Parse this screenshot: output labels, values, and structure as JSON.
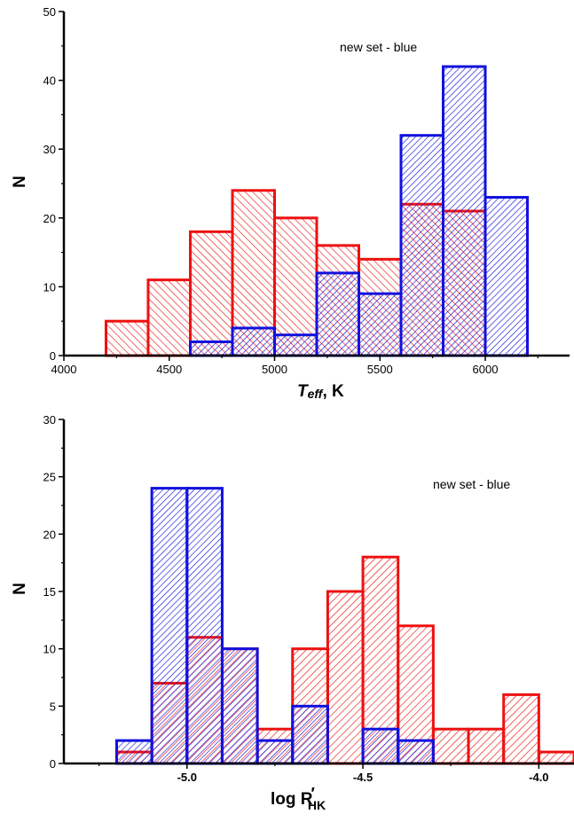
{
  "colors": {
    "red": "#ee1111",
    "blue": "#1111dd",
    "axis": "#000000"
  },
  "chart_data": [
    {
      "type": "bar",
      "subtype": "overlaid-histogram",
      "annotation": "new set - blue",
      "xlabel_main": "T",
      "xlabel_sub": "eff",
      "xlabel_suffix": ", K",
      "ylabel": "N",
      "xlim": [
        4000,
        6400
      ],
      "ylim": [
        0,
        50
      ],
      "x_ticks": [
        4000,
        4500,
        5000,
        5500,
        6000
      ],
      "x_tick_labels": [
        "4000",
        "4500",
        "5000",
        "5500",
        "6000"
      ],
      "y_ticks": [
        0,
        10,
        20,
        30,
        40,
        50
      ],
      "y_tick_labels": [
        "0",
        "10",
        "20",
        "30",
        "40",
        "50"
      ],
      "series": [
        {
          "color": "red",
          "bins": [
            {
              "x0": 4200,
              "x1": 4400,
              "value": 5
            },
            {
              "x0": 4400,
              "x1": 4600,
              "value": 11
            },
            {
              "x0": 4600,
              "x1": 4800,
              "value": 18
            },
            {
              "x0": 4800,
              "x1": 5000,
              "value": 24
            },
            {
              "x0": 5000,
              "x1": 5200,
              "value": 20
            },
            {
              "x0": 5200,
              "x1": 5400,
              "value": 16
            },
            {
              "x0": 5400,
              "x1": 5600,
              "value": 14
            },
            {
              "x0": 5600,
              "x1": 5800,
              "value": 22
            },
            {
              "x0": 5800,
              "x1": 6000,
              "value": 21
            }
          ]
        },
        {
          "color": "blue",
          "bins": [
            {
              "x0": 4600,
              "x1": 4800,
              "value": 2
            },
            {
              "x0": 4800,
              "x1": 5000,
              "value": 4
            },
            {
              "x0": 5000,
              "x1": 5200,
              "value": 3
            },
            {
              "x0": 5200,
              "x1": 5400,
              "value": 12
            },
            {
              "x0": 5400,
              "x1": 5600,
              "value": 9
            },
            {
              "x0": 5600,
              "x1": 5800,
              "value": 32
            },
            {
              "x0": 5800,
              "x1": 6000,
              "value": 42
            },
            {
              "x0": 6000,
              "x1": 6200,
              "value": 23
            }
          ]
        }
      ]
    },
    {
      "type": "bar",
      "subtype": "overlaid-histogram",
      "annotation": "new set - blue",
      "xlabel_main": "log R",
      "xlabel_prime": "′",
      "xlabel_sub": "HK",
      "ylabel": "N",
      "xlim": [
        -5.35,
        -3.9
      ],
      "ylim": [
        0,
        30
      ],
      "x_ticks": [
        -5.0,
        -4.5,
        -4.0
      ],
      "x_tick_labels": [
        "-5.0",
        "-4.5",
        "-4.0"
      ],
      "y_ticks": [
        0,
        5,
        10,
        15,
        20,
        25,
        30
      ],
      "y_tick_labels": [
        "0",
        "5",
        "10",
        "15",
        "20",
        "25",
        "30"
      ],
      "series": [
        {
          "color": "red",
          "bins": [
            {
              "x0": -5.2,
              "x1": -5.1,
              "value": 1
            },
            {
              "x0": -5.1,
              "x1": -5.0,
              "value": 7
            },
            {
              "x0": -5.0,
              "x1": -4.9,
              "value": 11
            },
            {
              "x0": -4.9,
              "x1": -4.8,
              "value": 10
            },
            {
              "x0": -4.8,
              "x1": -4.7,
              "value": 3
            },
            {
              "x0": -4.7,
              "x1": -4.6,
              "value": 10
            },
            {
              "x0": -4.6,
              "x1": -4.5,
              "value": 15
            },
            {
              "x0": -4.5,
              "x1": -4.4,
              "value": 18
            },
            {
              "x0": -4.4,
              "x1": -4.3,
              "value": 12
            },
            {
              "x0": -4.3,
              "x1": -4.2,
              "value": 3
            },
            {
              "x0": -4.2,
              "x1": -4.1,
              "value": 3
            },
            {
              "x0": -4.1,
              "x1": -4.0,
              "value": 6
            },
            {
              "x0": -4.0,
              "x1": -3.9,
              "value": 1
            }
          ]
        },
        {
          "color": "blue",
          "bins": [
            {
              "x0": -5.2,
              "x1": -5.1,
              "value": 2
            },
            {
              "x0": -5.1,
              "x1": -5.0,
              "value": 24
            },
            {
              "x0": -5.0,
              "x1": -4.9,
              "value": 24
            },
            {
              "x0": -4.9,
              "x1": -4.8,
              "value": 10
            },
            {
              "x0": -4.8,
              "x1": -4.7,
              "value": 2
            },
            {
              "x0": -4.7,
              "x1": -4.6,
              "value": 5
            },
            {
              "x0": -4.5,
              "x1": -4.4,
              "value": 3
            },
            {
              "x0": -4.4,
              "x1": -4.3,
              "value": 2
            }
          ]
        }
      ]
    }
  ]
}
